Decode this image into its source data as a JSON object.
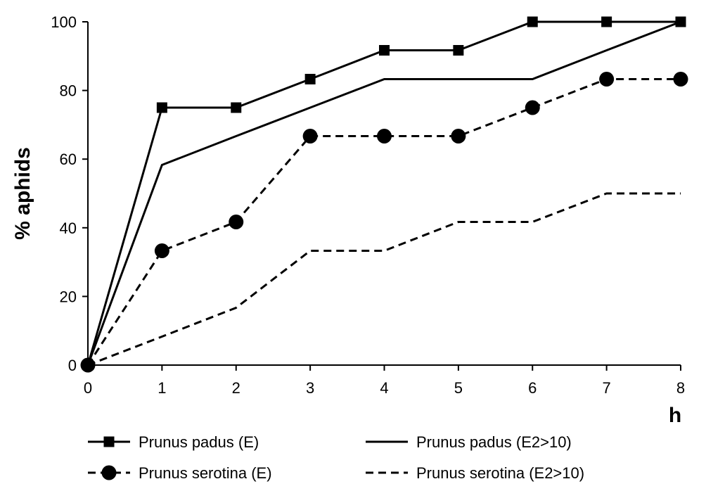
{
  "chart_data": {
    "type": "line",
    "title": "",
    "xlabel": "h",
    "ylabel": "% aphids",
    "xlim": [
      0,
      8
    ],
    "ylim": [
      0,
      100
    ],
    "x_ticks": [
      0,
      1,
      2,
      3,
      4,
      5,
      6,
      7,
      8
    ],
    "y_ticks": [
      0,
      20,
      40,
      60,
      80,
      100
    ],
    "grid": false,
    "legend_position": "bottom",
    "x": [
      0,
      1,
      2,
      3,
      4,
      5,
      6,
      7,
      8
    ],
    "series": [
      {
        "name": "Prunus padus (E)",
        "values": [
          0,
          75,
          75,
          83.3,
          91.7,
          91.7,
          100,
          100,
          100
        ],
        "line_style": "solid",
        "marker": "square",
        "color": "#000000"
      },
      {
        "name": "Prunus padus (E2>10)",
        "values": [
          0,
          58.3,
          66.7,
          75,
          83.3,
          83.3,
          83.3,
          91.7,
          100
        ],
        "line_style": "solid",
        "marker": "none",
        "color": "#000000"
      },
      {
        "name": "Prunus serotina (E)",
        "values": [
          0,
          33.3,
          41.7,
          66.7,
          66.7,
          66.7,
          75,
          83.3,
          83.3
        ],
        "line_style": "dashed",
        "marker": "circle",
        "color": "#000000"
      },
      {
        "name": "Prunus serotina (E2>10)",
        "values": [
          0,
          8.3,
          16.7,
          33.3,
          33.3,
          41.7,
          41.7,
          50,
          50
        ],
        "line_style": "dashed",
        "marker": "none",
        "color": "#000000"
      }
    ]
  }
}
